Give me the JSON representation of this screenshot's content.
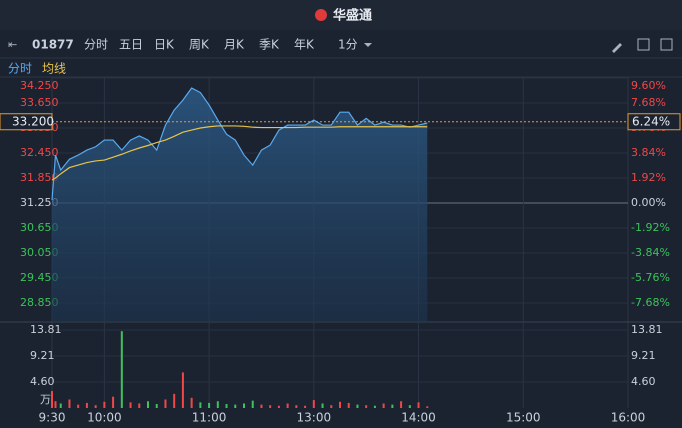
{
  "header": {
    "brand": "华盛通"
  },
  "toolbar": {
    "code": "01877",
    "tabs": [
      "分时",
      "五日",
      "日K",
      "周K",
      "月K",
      "季K",
      "年K"
    ],
    "interval": "1分"
  },
  "chart_data": [
    {
      "type": "line",
      "x": [
        0,
        2,
        5,
        10,
        15,
        20,
        25,
        30,
        35,
        40,
        45,
        50,
        55,
        60,
        65,
        70,
        75,
        80,
        85,
        90,
        95,
        100,
        105,
        110,
        115,
        120,
        125,
        130,
        135,
        140,
        145,
        150,
        155,
        160,
        165,
        170,
        175,
        180,
        185,
        190,
        195,
        200,
        205,
        210,
        215
      ],
      "xlim": [
        0,
        330
      ],
      "xticks": [
        {
          "value": 0,
          "label": "9:30"
        },
        {
          "value": 30,
          "label": "10:00"
        },
        {
          "value": 90,
          "label": "11:00"
        },
        {
          "value": 150,
          "label": "13:00"
        },
        {
          "value": 210,
          "label": "14:00"
        },
        {
          "value": 270,
          "label": "15:00"
        },
        {
          "value": 330,
          "label": "16:00"
        }
      ],
      "ylim": [
        28.25,
        34.25
      ],
      "yticks": [
        {
          "value": 34.25,
          "label": "34.250"
        },
        {
          "value": 33.65,
          "label": "33.650"
        },
        {
          "value": 33.05,
          "label": "33.050"
        },
        {
          "value": 32.45,
          "label": "32.450"
        },
        {
          "value": 31.85,
          "label": "31.850"
        },
        {
          "value": 31.25,
          "label": "31.250"
        },
        {
          "value": 30.65,
          "label": "30.650"
        },
        {
          "value": 30.05,
          "label": "30.050"
        },
        {
          "value": 29.45,
          "label": "29.450"
        },
        {
          "value": 28.85,
          "label": "28.850"
        }
      ],
      "y2lim": [
        -9.6,
        9.6
      ],
      "y2ticks": [
        {
          "value": 9.6,
          "label": "9.60%"
        },
        {
          "value": 7.68,
          "label": "7.68%"
        },
        {
          "value": 5.76,
          "label": "5.76%"
        },
        {
          "value": 3.84,
          "label": "3.84%"
        },
        {
          "value": 1.92,
          "label": "1.92%"
        },
        {
          "value": 0,
          "label": "0.00%"
        },
        {
          "value": -1.92,
          "label": "-1.92%"
        },
        {
          "value": -3.84,
          "label": "-3.84%"
        },
        {
          "value": -5.76,
          "label": "-5.76%"
        },
        {
          "value": -7.68,
          "label": "-7.68%"
        }
      ],
      "base": 31.25,
      "current": {
        "value": 33.2,
        "label": "33.200"
      },
      "current_change": {
        "value": 6.24,
        "label": "6.24%"
      },
      "up_color": "#f04848",
      "down_color": "#3cc35c",
      "series": [
        {
          "name": "分时",
          "color": "#5aaaf0",
          "values": [
            31.32,
            32.4,
            32.04,
            32.3,
            32.4,
            32.52,
            32.6,
            32.76,
            32.76,
            32.52,
            32.76,
            32.86,
            32.76,
            32.52,
            33.12,
            33.48,
            33.72,
            34.01,
            33.9,
            33.6,
            33.24,
            32.9,
            32.76,
            32.4,
            32.16,
            32.52,
            32.64,
            33.0,
            33.12,
            33.12,
            33.12,
            33.24,
            33.12,
            33.12,
            33.43,
            33.43,
            33.12,
            33.28,
            33.12,
            33.19,
            33.12,
            33.12,
            33.07,
            33.12,
            33.17
          ]
        },
        {
          "name": "均线",
          "color": "#e8c34a",
          "values": [
            31.8,
            31.85,
            31.95,
            32.1,
            32.16,
            32.22,
            32.26,
            32.28,
            32.35,
            32.42,
            32.5,
            32.57,
            32.63,
            32.7,
            32.76,
            32.85,
            32.95,
            33.0,
            33.05,
            33.08,
            33.1,
            33.1,
            33.1,
            33.09,
            33.07,
            33.06,
            33.06,
            33.06,
            33.06,
            33.06,
            33.07,
            33.07,
            33.07,
            33.07,
            33.08,
            33.08,
            33.08,
            33.08,
            33.08,
            33.08,
            33.08,
            33.08,
            33.08,
            33.08,
            33.08
          ]
        }
      ]
    },
    {
      "type": "bar",
      "unit": "万",
      "ylim": [
        0,
        13.81
      ],
      "yticks": [
        13.81,
        9.21,
        {
          "value": 4.6,
          "label": "4.60"
        }
      ],
      "values": [
        3.0,
        1.2,
        0.8,
        1.5,
        0.6,
        0.9,
        0.5,
        1.1,
        2.0,
        13.6,
        1.0,
        0.8,
        1.2,
        0.7,
        1.5,
        2.5,
        6.3,
        1.8,
        1.0,
        0.9,
        1.2,
        0.7,
        0.6,
        0.8,
        1.3,
        0.6,
        0.5,
        0.4,
        0.8,
        0.5,
        0.4,
        1.4,
        0.8,
        0.5,
        1.1,
        0.9,
        0.6,
        0.5,
        0.4,
        0.8,
        0.6,
        1.2,
        0.5,
        1.0,
        0.3
      ]
    }
  ]
}
